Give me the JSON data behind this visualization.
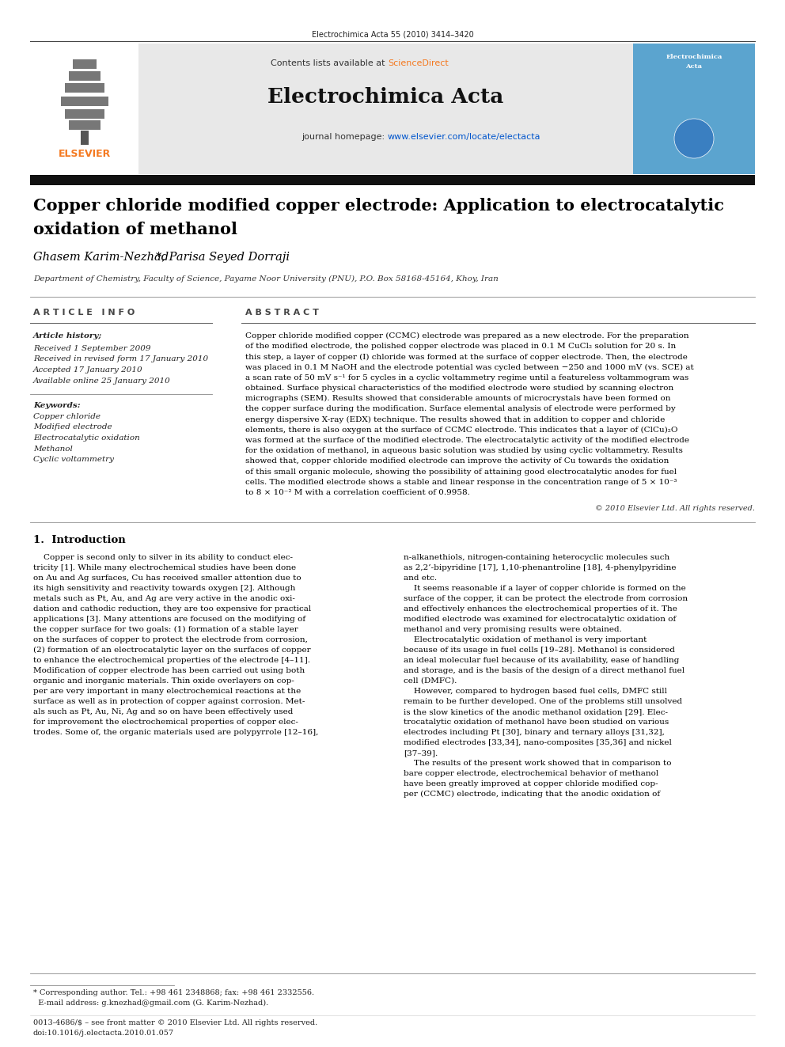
{
  "page_width": 9.92,
  "page_height": 13.23,
  "dpi": 100,
  "background_color": "#ffffff",
  "top_citation": "Electrochimica Acta 55 (2010) 3414–3420",
  "header_bg": "#e8e8e8",
  "header_contents_text": "Contents lists available at ",
  "header_sciencedirect": "ScienceDirect",
  "header_journal": "Electrochimica Acta",
  "header_homepage_text": "journal homepage: ",
  "header_homepage_url": "www.elsevier.com/locate/electacta",
  "article_title_line1": "Copper chloride modified copper electrode: Application to electrocatalytic",
  "article_title_line2": "oxidation of methanol",
  "authors": "Ghasem Karim-Nezhad",
  "authors2": "*, Parisa Seyed Dorraji",
  "affiliation": "Department of Chemistry, Faculty of Science, Payame Noor University (PNU), P.O. Box 58168-45164, Khoy, Iran",
  "section_article_info": "A R T I C L E   I N F O",
  "section_abstract": "A B S T R A C T",
  "article_history_title": "Article history;",
  "article_history": [
    "Received 1 September 2009",
    "Received in revised form 17 January 2010",
    "Accepted 17 January 2010",
    "Available online 25 January 2010"
  ],
  "keywords_title": "Keywords:",
  "keywords": [
    "Copper chloride",
    "Modified electrode",
    "Electrocatalytic oxidation",
    "Methanol",
    "Cyclic voltammetry"
  ],
  "abstract_text": "Copper chloride modified copper (CCMC) electrode was prepared as a new electrode. For the preparation of the modified electrode, the polished copper electrode was placed in 0.1 M CuCl₂ solution for 20 s. In this step, a layer of copper (I) chloride was formed at the surface of copper electrode. Then, the electrode was placed in 0.1 M NaOH and the electrode potential was cycled between −250 and 1000 mV (vs. SCE) at a scan rate of 50 mV s⁻¹ for 5 cycles in a cyclic voltammetry regime until a featureless voltammogram was obtained. Surface physical characteristics of the modified electrode were studied by scanning electron micrographs (SEM). Results showed that considerable amounts of microcrystals have been formed on the copper surface during the modification. Surface elemental analysis of electrode were performed by energy dispersive X-ray (EDX) technique. The results showed that in addition to copper and chloride elements, there is also oxygen at the surface of CCMC electrode. This indicates that a layer of (ClCu)₂O was formed at the surface of the modified electrode. The electrocatalytic activity of the modified electrode for the oxidation of methanol, in aqueous basic solution was studied by using cyclic voltammetry. Results showed that, copper chloride modified electrode can improve the activity of Cu towards the oxidation of this small organic molecule, showing the possibility of attaining good electrocatalytic anodes for fuel cells. The modified electrode shows a stable and linear response in the concentration range of 5 × 10⁻³ to 8 × 10⁻² M with a correlation coefficient of 0.9958.",
  "copyright_text": "© 2010 Elsevier Ltd. All rights reserved.",
  "intro_title": "1.  Introduction",
  "intro_col1_lines": [
    "    Copper is second only to silver in its ability to conduct elec-",
    "tricity [1]. While many electrochemical studies have been done",
    "on Au and Ag surfaces, Cu has received smaller attention due to",
    "its high sensitivity and reactivity towards oxygen [2]. Although",
    "metals such as Pt, Au, and Ag are very active in the anodic oxi-",
    "dation and cathodic reduction, they are too expensive for practical",
    "applications [3]. Many attentions are focused on the modifying of",
    "the copper surface for two goals: (1) formation of a stable layer",
    "on the surfaces of copper to protect the electrode from corrosion,",
    "(2) formation of an electrocatalytic layer on the surfaces of copper",
    "to enhance the electrochemical properties of the electrode [4–11].",
    "Modification of copper electrode has been carried out using both",
    "organic and inorganic materials. Thin oxide overlayers on cop-",
    "per are very important in many electrochemical reactions at the",
    "surface as well as in protection of copper against corrosion. Met-",
    "als such as Pt, Au, Ni, Ag and so on have been effectively used",
    "for improvement the electrochemical properties of copper elec-",
    "trodes. Some of, the organic materials used are polypyrrole [12–16],"
  ],
  "intro_col2_lines": [
    "n-alkanethiols, nitrogen-containing heterocyclic molecules such",
    "as 2,2’-bipyridine [17], 1,10-phenantroline [18], 4-phenylpyridine",
    "and etc.",
    "    It seems reasonable if a layer of copper chloride is formed on the",
    "surface of the copper, it can be protect the electrode from corrosion",
    "and effectively enhances the electrochemical properties of it. The",
    "modified electrode was examined for electrocatalytic oxidation of",
    "methanol and very promising results were obtained.",
    "    Electrocatalytic oxidation of methanol is very important",
    "because of its usage in fuel cells [19–28]. Methanol is considered",
    "an ideal molecular fuel because of its availability, ease of handling",
    "and storage, and is the basis of the design of a direct methanol fuel",
    "cell (DMFC).",
    "    However, compared to hydrogen based fuel cells, DMFC still",
    "remain to be further developed. One of the problems still unsolved",
    "is the slow kinetics of the anodic methanol oxidation [29]. Elec-",
    "trocatalytic oxidation of methanol have been studied on various",
    "electrodes including Pt [30], binary and ternary alloys [31,32],",
    "modified electrodes [33,34], nano-composites [35,36] and nickel",
    "[37–39].",
    "    The results of the present work showed that in comparison to",
    "bare copper electrode, electrochemical behavior of methanol",
    "have been greatly improved at copper chloride modified cop-",
    "per (CCMC) electrode, indicating that the anodic oxidation of"
  ],
  "footer_note_line1": "* Corresponding author. Tel.: +98 461 2348868; fax: +98 461 2332556.",
  "footer_note_line2": "  E-mail address: g.knezhad@gmail.com (G. Karim-Nezhad).",
  "footer_issn": "0013-4686/$ – see front matter © 2010 Elsevier Ltd. All rights reserved.",
  "footer_doi": "doi:10.1016/j.electacta.2010.01.057"
}
